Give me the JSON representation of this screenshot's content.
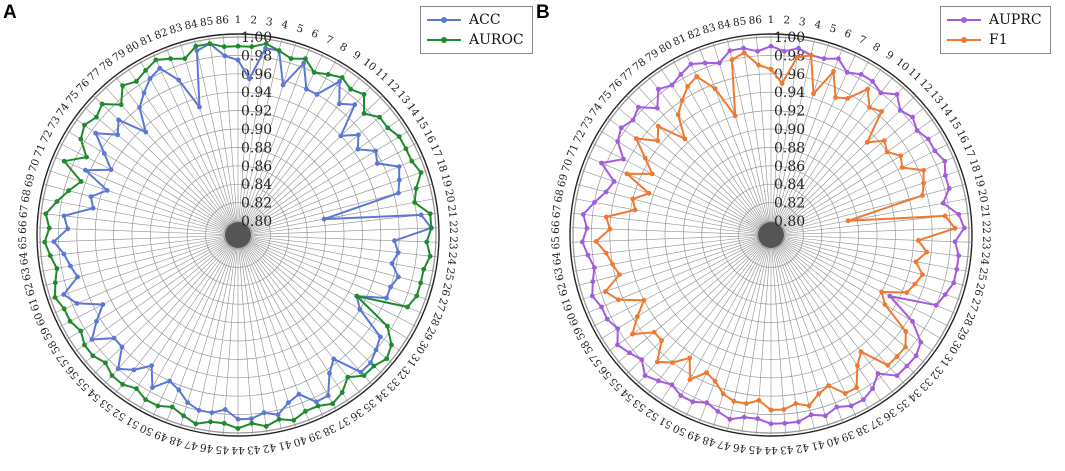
{
  "panels": [
    {
      "letter": "A",
      "legend": [
        {
          "label": "ACC",
          "color": "#5b78d6"
        },
        {
          "label": "AUROC",
          "color": "#1d8a2c"
        }
      ]
    },
    {
      "letter": "B",
      "legend": [
        {
          "label": "AUPRC",
          "color": "#a35be0"
        },
        {
          "label": "F1",
          "color": "#f07830"
        }
      ]
    }
  ],
  "chart_data": [
    {
      "type": "radar",
      "title": "",
      "categories": [
        "1",
        "2",
        "3",
        "4",
        "5",
        "6",
        "7",
        "8",
        "9",
        "10",
        "11",
        "12",
        "13",
        "14",
        "15",
        "16",
        "17",
        "18",
        "19",
        "20",
        "21",
        "22",
        "23",
        "24",
        "25",
        "26",
        "27",
        "28",
        "29",
        "30",
        "31",
        "32",
        "33",
        "34",
        "35",
        "36",
        "37",
        "38",
        "39",
        "40",
        "41",
        "42",
        "43",
        "44",
        "45",
        "46",
        "47",
        "48",
        "49",
        "50",
        "51",
        "52",
        "53",
        "54",
        "55",
        "56",
        "57",
        "58",
        "59",
        "60",
        "61",
        "62",
        "63",
        "64",
        "65",
        "66",
        "67",
        "68",
        "69",
        "70",
        "71",
        "72",
        "73",
        "74",
        "75",
        "76",
        "77",
        "78",
        "79",
        "80",
        "81",
        "82",
        "83",
        "84",
        "85",
        "86"
      ],
      "radial_ticks": [
        "0.80",
        "0.82",
        "0.84",
        "0.86",
        "0.88",
        "0.90",
        "0.92",
        "0.94",
        "0.96",
        "0.98",
        "1.00"
      ],
      "rlim": [
        0.8,
        1.0
      ],
      "legend_position": "top-right",
      "series": [
        {
          "name": "ACC",
          "color": "#5b78d6",
          "values": [
            0.975,
            0.955,
            0.99,
            0.99,
            0.955,
            0.985,
            0.96,
            0.96,
            0.985,
            0.965,
            0.975,
            0.94,
            0.955,
            0.945,
            0.96,
            0.955,
            0.975,
            0.97,
            0.965,
            0.88,
            0.985,
            0.995,
            0.955,
            0.96,
            0.955,
            0.965,
            0.96,
            0.96,
            0.93,
            0.94,
            0.975,
            0.98,
            0.985,
            0.985,
            0.955,
            0.965,
            0.985,
            0.985,
            0.97,
            0.975,
            0.985,
            0.98,
            0.985,
            0.985,
            0.975,
            0.98,
            0.98,
            0.975,
            0.965,
            0.96,
            0.975,
            0.955,
            0.97,
            0.98,
            0.96,
            0.96,
            0.98,
            0.965,
            0.95,
            0.975,
            0.985,
            0.965,
            0.97,
            0.975,
            0.985,
            0.97,
            0.975,
            0.945,
            0.95,
            0.935,
            0.965,
            0.94,
            0.955,
            0.975,
            0.955,
            0.965,
            0.935,
            0.96,
            0.97,
            0.98,
            0.985,
            0.965,
            0.93,
            0.99,
            0.995,
            0.98
          ]
        },
        {
          "name": "AUROC",
          "color": "#1d8a2c",
          "values": [
            0.99,
            0.99,
            0.995,
            0.99,
            0.985,
            0.99,
            0.98,
            0.985,
            0.99,
            0.985,
            0.99,
            0.975,
            0.985,
            0.985,
            0.99,
            0.99,
            0.99,
            0.995,
            0.985,
            0.98,
            0.995,
            0.995,
            0.99,
            0.995,
            0.99,
            0.99,
            0.99,
            0.985,
            0.93,
            0.975,
            0.99,
            0.995,
            0.99,
            0.99,
            0.98,
            0.99,
            0.995,
            0.99,
            0.99,
            0.995,
            0.99,
            0.995,
            0.99,
            0.995,
            0.99,
            0.99,
            0.995,
            0.99,
            0.985,
            0.99,
            0.99,
            0.985,
            0.99,
            0.99,
            0.985,
            0.99,
            0.99,
            0.985,
            0.99,
            0.99,
            0.995,
            0.99,
            0.985,
            0.99,
            0.995,
            0.99,
            0.995,
            0.985,
            0.975,
            0.965,
            0.99,
            0.97,
            0.985,
            0.99,
            0.985,
            0.99,
            0.975,
            0.99,
            0.985,
            0.99,
            0.995,
            0.99,
            0.985,
            0.995,
            0.995,
            0.99
          ]
        }
      ]
    },
    {
      "type": "radar",
      "title": "",
      "categories": [
        "1",
        "2",
        "3",
        "4",
        "5",
        "6",
        "7",
        "8",
        "9",
        "10",
        "11",
        "12",
        "13",
        "14",
        "15",
        "16",
        "17",
        "18",
        "19",
        "20",
        "21",
        "22",
        "23",
        "24",
        "25",
        "26",
        "27",
        "28",
        "29",
        "30",
        "31",
        "32",
        "33",
        "34",
        "35",
        "36",
        "37",
        "38",
        "39",
        "40",
        "41",
        "42",
        "43",
        "44",
        "45",
        "46",
        "47",
        "48",
        "49",
        "50",
        "51",
        "52",
        "53",
        "54",
        "55",
        "56",
        "57",
        "58",
        "59",
        "60",
        "61",
        "62",
        "63",
        "64",
        "65",
        "66",
        "67",
        "68",
        "69",
        "70",
        "71",
        "72",
        "73",
        "74",
        "75",
        "76",
        "77",
        "78",
        "79",
        "80",
        "81",
        "82",
        "83",
        "84",
        "85",
        "86"
      ],
      "radial_ticks": [
        "0.80",
        "0.82",
        "0.84",
        "0.86",
        "0.88",
        "0.90",
        "0.92",
        "0.94",
        "0.96",
        "0.98",
        "1.00"
      ],
      "rlim": [
        0.8,
        1.0
      ],
      "legend_position": "top-right",
      "series": [
        {
          "name": "AUPRC",
          "color": "#a35be0",
          "values": [
            0.99,
            0.985,
            0.99,
            0.985,
            0.985,
            0.99,
            0.98,
            0.985,
            0.985,
            0.98,
            0.99,
            0.98,
            0.985,
            0.98,
            0.985,
            0.985,
            0.99,
            0.985,
            0.985,
            0.975,
            0.99,
            0.995,
            0.985,
            0.99,
            0.99,
            0.99,
            0.985,
            0.98,
            0.93,
            0.965,
            0.985,
            0.99,
            0.99,
            0.99,
            0.975,
            0.985,
            0.99,
            0.99,
            0.985,
            0.99,
            0.985,
            0.99,
            0.99,
            0.99,
            0.985,
            0.985,
            0.99,
            0.985,
            0.98,
            0.985,
            0.985,
            0.98,
            0.985,
            0.99,
            0.98,
            0.985,
            0.99,
            0.98,
            0.985,
            0.985,
            0.99,
            0.985,
            0.98,
            0.985,
            0.99,
            0.985,
            0.99,
            0.98,
            0.97,
            0.965,
            0.985,
            0.965,
            0.98,
            0.985,
            0.98,
            0.985,
            0.97,
            0.985,
            0.98,
            0.985,
            0.99,
            0.985,
            0.98,
            0.99,
            0.99,
            0.985
          ]
        },
        {
          "name": "F1",
          "color": "#f07830",
          "values": [
            0.965,
            0.95,
            0.98,
            0.985,
            0.945,
            0.975,
            0.95,
            0.955,
            0.975,
            0.96,
            0.965,
            0.93,
            0.945,
            0.94,
            0.95,
            0.945,
            0.965,
            0.96,
            0.955,
            0.87,
            0.975,
            0.985,
            0.945,
            0.955,
            0.945,
            0.955,
            0.95,
            0.945,
            0.92,
            0.93,
            0.965,
            0.975,
            0.975,
            0.975,
            0.945,
            0.955,
            0.975,
            0.975,
            0.96,
            0.965,
            0.975,
            0.97,
            0.975,
            0.975,
            0.965,
            0.97,
            0.97,
            0.965,
            0.955,
            0.95,
            0.965,
            0.945,
            0.96,
            0.97,
            0.95,
            0.95,
            0.97,
            0.955,
            0.94,
            0.965,
            0.975,
            0.955,
            0.96,
            0.965,
            0.975,
            0.96,
            0.965,
            0.935,
            0.94,
            0.925,
            0.955,
            0.93,
            0.945,
            0.965,
            0.945,
            0.955,
            0.925,
            0.95,
            0.96,
            0.97,
            0.975,
            0.955,
            0.92,
            0.98,
            0.985,
            0.97
          ]
        }
      ]
    }
  ]
}
